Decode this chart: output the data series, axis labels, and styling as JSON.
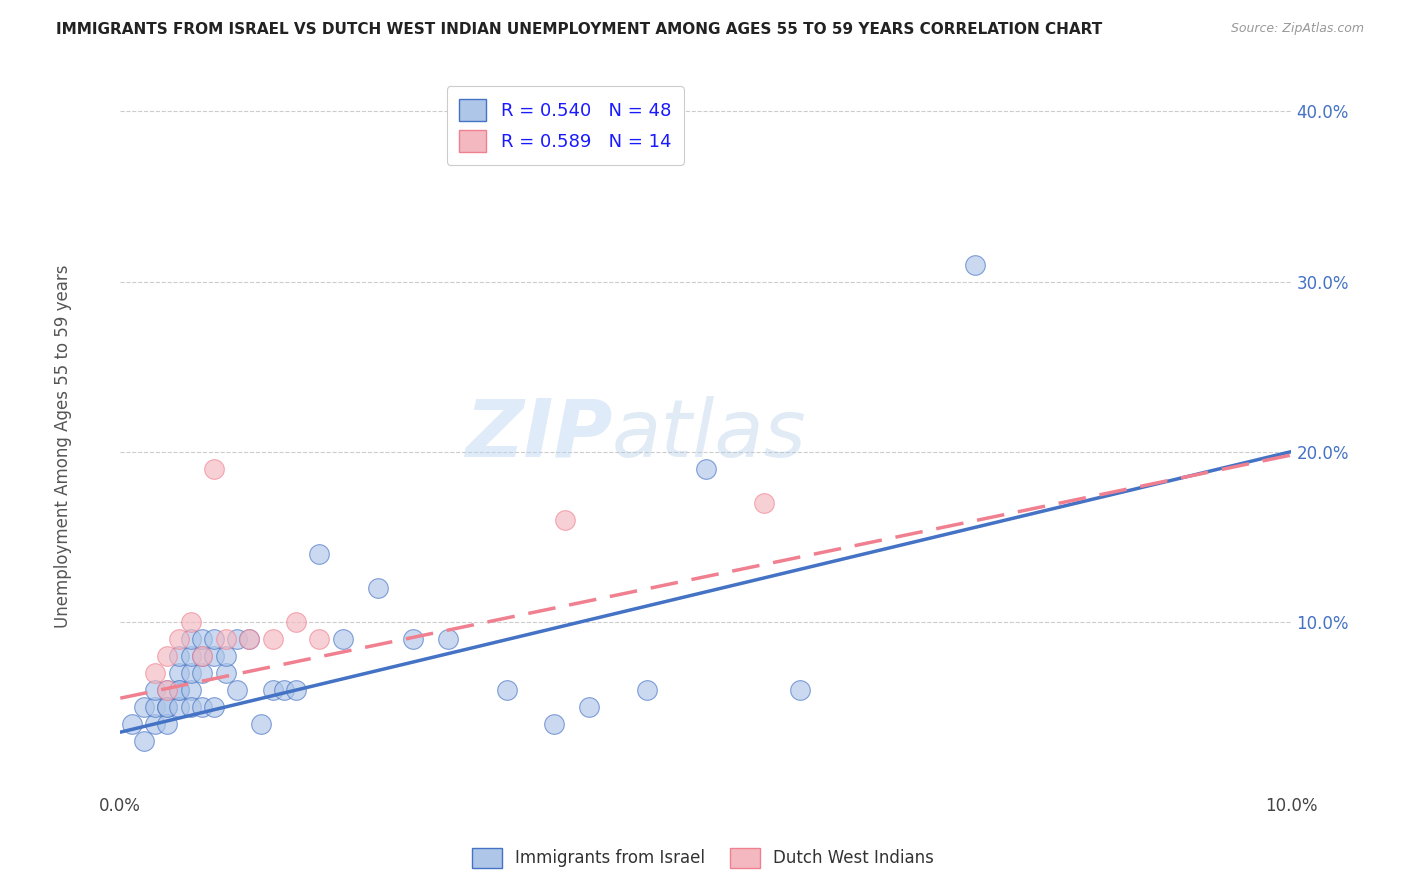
{
  "title": "IMMIGRANTS FROM ISRAEL VS DUTCH WEST INDIAN UNEMPLOYMENT AMONG AGES 55 TO 59 YEARS CORRELATION CHART",
  "source": "Source: ZipAtlas.com",
  "ylabel": "Unemployment Among Ages 55 to 59 years",
  "xlim": [
    0.0,
    0.1
  ],
  "ylim": [
    0.0,
    0.42
  ],
  "yticks": [
    0.0,
    0.1,
    0.2,
    0.3,
    0.4
  ],
  "yticklabels": [
    "",
    "10.0%",
    "20.0%",
    "30.0%",
    "40.0%"
  ],
  "israel_R": 0.54,
  "israel_N": 48,
  "dwi_R": 0.589,
  "dwi_N": 14,
  "israel_color": "#aec6e8",
  "dwi_color": "#f4b8c1",
  "israel_line_color": "#4472c4",
  "dwi_line_color": "#f08090",
  "background_color": "#ffffff",
  "grid_color": "#cccccc",
  "israel_x": [
    0.001,
    0.002,
    0.002,
    0.003,
    0.003,
    0.003,
    0.004,
    0.004,
    0.004,
    0.004,
    0.005,
    0.005,
    0.005,
    0.005,
    0.005,
    0.006,
    0.006,
    0.006,
    0.006,
    0.006,
    0.007,
    0.007,
    0.007,
    0.007,
    0.008,
    0.008,
    0.008,
    0.009,
    0.009,
    0.01,
    0.01,
    0.011,
    0.012,
    0.013,
    0.014,
    0.015,
    0.017,
    0.019,
    0.022,
    0.025,
    0.028,
    0.033,
    0.037,
    0.04,
    0.045,
    0.05,
    0.073,
    0.058
  ],
  "israel_y": [
    0.04,
    0.05,
    0.03,
    0.04,
    0.05,
    0.06,
    0.05,
    0.04,
    0.06,
    0.05,
    0.06,
    0.05,
    0.07,
    0.06,
    0.08,
    0.06,
    0.07,
    0.08,
    0.05,
    0.09,
    0.07,
    0.08,
    0.05,
    0.09,
    0.08,
    0.09,
    0.05,
    0.07,
    0.08,
    0.06,
    0.09,
    0.09,
    0.04,
    0.06,
    0.06,
    0.06,
    0.14,
    0.09,
    0.12,
    0.09,
    0.09,
    0.06,
    0.04,
    0.05,
    0.06,
    0.19,
    0.31,
    0.06
  ],
  "dwi_x": [
    0.003,
    0.004,
    0.004,
    0.005,
    0.006,
    0.007,
    0.008,
    0.009,
    0.011,
    0.013,
    0.015,
    0.017,
    0.038,
    0.055
  ],
  "dwi_y": [
    0.07,
    0.08,
    0.06,
    0.09,
    0.1,
    0.08,
    0.19,
    0.09,
    0.09,
    0.09,
    0.1,
    0.09,
    0.16,
    0.17
  ],
  "israel_line_x0": 0.0,
  "israel_line_y0": 0.035,
  "israel_line_x1": 0.1,
  "israel_line_y1": 0.2,
  "dwi_line_x0": 0.0,
  "dwi_line_y0": 0.055,
  "dwi_line_x1": 0.1,
  "dwi_line_y1": 0.198
}
